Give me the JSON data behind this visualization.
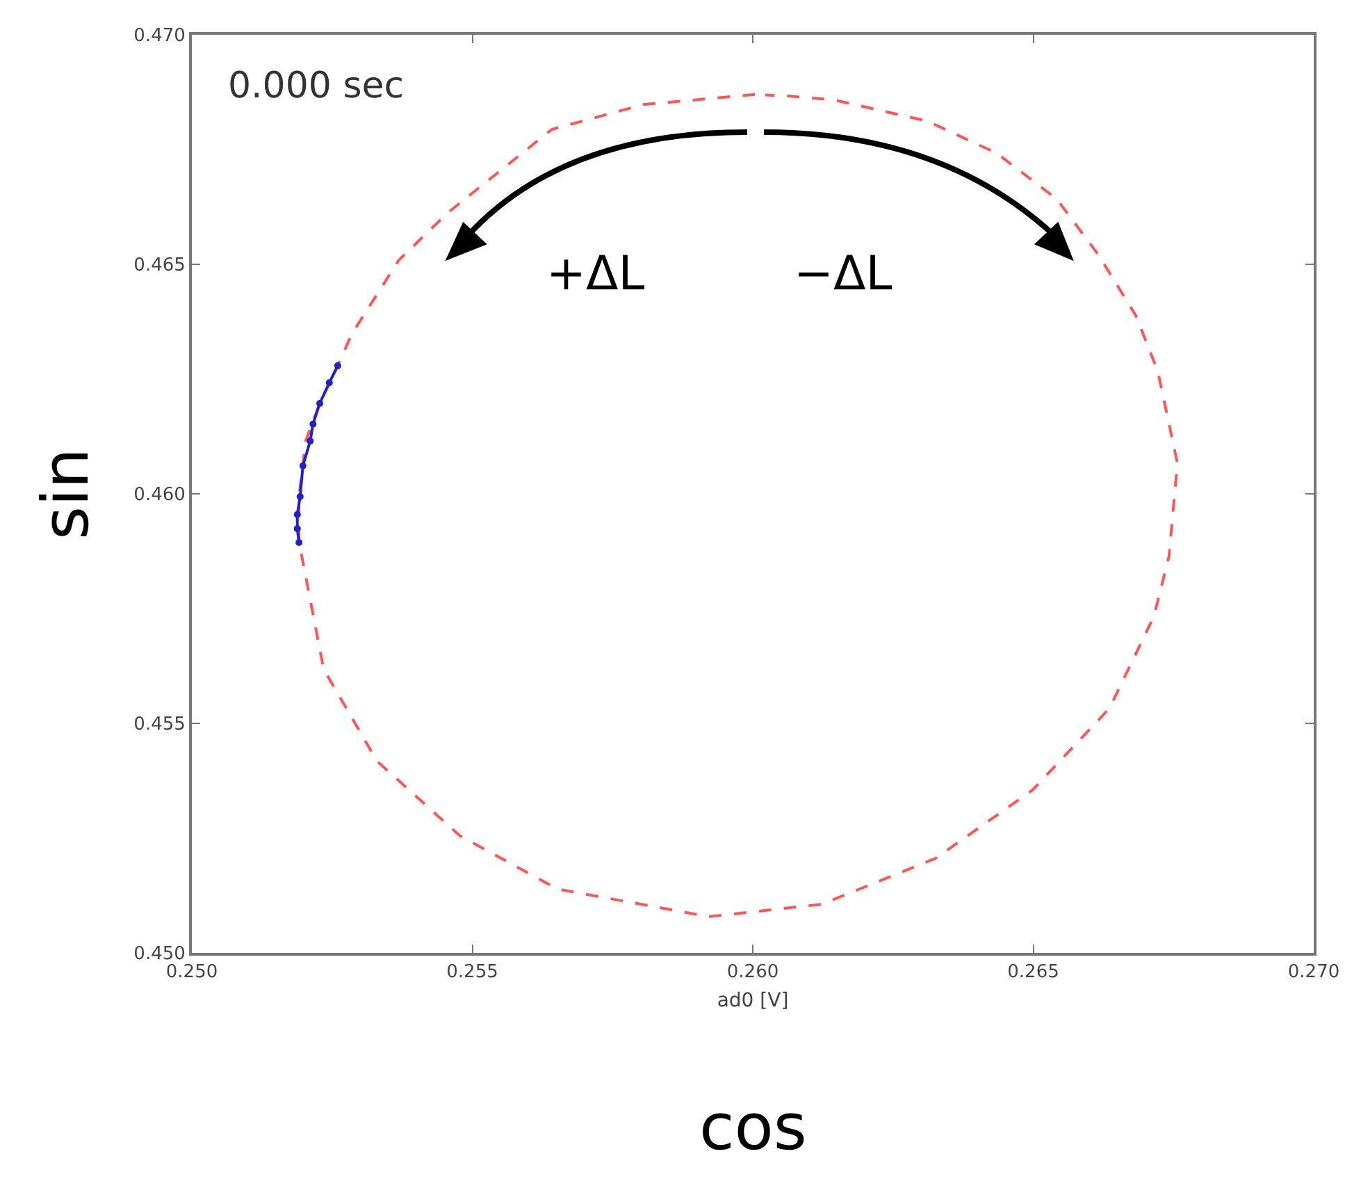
{
  "chart_data": {
    "type": "line",
    "xlabel": "ad0 [V]",
    "ylabel": "sin",
    "annotations": [
      "0.000 sec",
      "+ΔL",
      "−ΔL",
      "cos"
    ],
    "xlim": [
      0.25,
      0.27
    ],
    "ylim": [
      0.45,
      0.47
    ],
    "xticks": [
      {
        "value": 0.25,
        "label": "0.250"
      },
      {
        "value": 0.255,
        "label": "0.255"
      },
      {
        "value": 0.26,
        "label": "0.260"
      },
      {
        "value": 0.265,
        "label": "0.265"
      },
      {
        "value": 0.27,
        "label": "0.270"
      }
    ],
    "yticks": [
      {
        "value": 0.45,
        "label": "0.450"
      },
      {
        "value": 0.455,
        "label": "0.455"
      },
      {
        "value": 0.46,
        "label": "0.460"
      },
      {
        "value": 0.465,
        "label": "0.465"
      },
      {
        "value": 0.47,
        "label": "0.470"
      }
    ],
    "series": [
      {
        "color": "#2020cc",
        "line_style": "solid",
        "marker": "circle",
        "x": [
          0.2526,
          0.25245,
          0.25228,
          0.25216,
          0.25211,
          0.25198,
          0.25193,
          0.25188,
          0.25188,
          0.25191
        ],
        "values": [
          0.46279,
          0.46242,
          0.46197,
          0.46152,
          0.46115,
          0.46061,
          0.45994,
          0.45955,
          0.45924,
          0.45894
        ]
      },
      {
        "color": "#ff5555",
        "line_style": "dashed",
        "marker": "none",
        "x": [
          0.26004,
          0.25805,
          0.25642,
          0.25456,
          0.25369,
          0.25285,
          0.2526,
          0.25228,
          0.25203,
          0.25191,
          0.25191,
          0.25196,
          0.25235,
          0.2533,
          0.25478,
          0.25652,
          0.25922,
          0.26123,
          0.26326,
          0.26499,
          0.26636,
          0.26715,
          0.26742,
          0.26757,
          0.26722,
          0.26683,
          0.26616,
          0.26542,
          0.26435,
          0.26311,
          0.26145,
          0.2607,
          0.26022
        ],
        "values": [
          0.4687,
          0.46848,
          0.46794,
          0.46612,
          0.46509,
          0.46348,
          0.46279,
          0.46197,
          0.46115,
          0.45994,
          0.45894,
          0.45864,
          0.45618,
          0.45418,
          0.45255,
          0.45139,
          0.45079,
          0.45106,
          0.45206,
          0.45355,
          0.45533,
          0.45733,
          0.45864,
          0.46067,
          0.46267,
          0.46388,
          0.46521,
          0.46642,
          0.46742,
          0.46812,
          0.46858,
          0.46866,
          0.46869
        ]
      }
    ]
  }
}
